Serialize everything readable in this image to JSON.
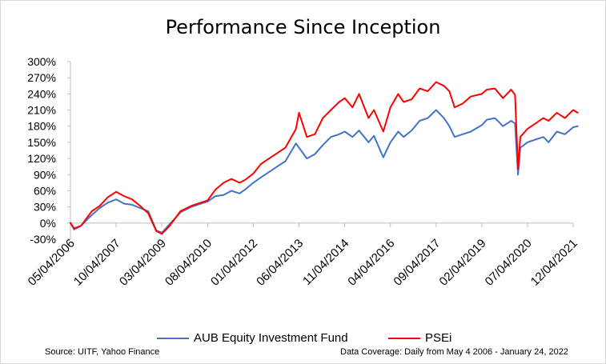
{
  "chart_data": {
    "type": "line",
    "title": "Performance Since Inception",
    "xlabel": "",
    "ylabel": "",
    "x_tick_labels": [
      "05/04/2006",
      "10/04/2007",
      "03/04/2009",
      "08/04/2010",
      "01/04/2012",
      "06/04/2013",
      "11/04/2014",
      "04/04/2016",
      "09/04/2017",
      "02/04/2019",
      "07/04/2020",
      "12/04/2021"
    ],
    "y_tick_labels": [
      "-30%",
      "0%",
      "30%",
      "60%",
      "90%",
      "120%",
      "150%",
      "180%",
      "210%",
      "240%",
      "270%",
      "300%"
    ],
    "ylim": [
      -30,
      300
    ],
    "y_unit": "%",
    "grid": false,
    "legend_position": "bottom",
    "x_dates": [
      "2006-05-04",
      "2006-06-15",
      "2006-09-01",
      "2007-01-01",
      "2007-04-01",
      "2007-07-01",
      "2007-10-04",
      "2008-01-01",
      "2008-04-01",
      "2008-07-01",
      "2008-10-01",
      "2009-01-01",
      "2009-03-04",
      "2009-06-01",
      "2009-10-01",
      "2010-02-01",
      "2010-05-01",
      "2010-08-04",
      "2010-11-01",
      "2011-02-01",
      "2011-05-01",
      "2011-08-01",
      "2011-10-01",
      "2012-01-04",
      "2012-04-01",
      "2012-07-01",
      "2012-10-01",
      "2013-01-01",
      "2013-05-01",
      "2013-06-04",
      "2013-09-01",
      "2013-12-01",
      "2014-03-01",
      "2014-06-01",
      "2014-09-01",
      "2014-11-04",
      "2015-02-01",
      "2015-04-15",
      "2015-08-01",
      "2015-10-01",
      "2016-01-15",
      "2016-04-04",
      "2016-07-01",
      "2016-09-01",
      "2016-12-01",
      "2017-03-01",
      "2017-06-01",
      "2017-09-04",
      "2017-12-01",
      "2018-02-01",
      "2018-04-01",
      "2018-07-01",
      "2018-10-01",
      "2019-02-04",
      "2019-04-01",
      "2019-07-01",
      "2019-10-01",
      "2020-01-01",
      "2020-02-15",
      "2020-03-19",
      "2020-04-15",
      "2020-07-04",
      "2020-10-01",
      "2021-01-01",
      "2021-03-01",
      "2021-06-01",
      "2021-09-01",
      "2021-12-04",
      "2022-01-24"
    ],
    "series": [
      {
        "name": "AUB Equity Investment Fund",
        "color": "#4472c4",
        "values": [
          0,
          -12,
          -5,
          15,
          28,
          38,
          44,
          36,
          34,
          28,
          22,
          -14,
          -18,
          -2,
          20,
          30,
          35,
          40,
          50,
          52,
          60,
          55,
          62,
          75,
          85,
          95,
          105,
          115,
          148,
          140,
          120,
          128,
          145,
          160,
          165,
          170,
          160,
          172,
          150,
          162,
          122,
          150,
          170,
          160,
          172,
          190,
          195,
          210,
          195,
          180,
          160,
          165,
          170,
          182,
          192,
          195,
          180,
          190,
          185,
          90,
          140,
          150,
          155,
          160,
          150,
          170,
          165,
          178,
          180
        ]
      },
      {
        "name": "PSEi",
        "color": "#ff0000",
        "values": [
          0,
          -10,
          -5,
          22,
          32,
          48,
          58,
          50,
          44,
          32,
          18,
          -15,
          -20,
          -5,
          22,
          32,
          37,
          42,
          62,
          75,
          82,
          75,
          80,
          92,
          110,
          120,
          130,
          140,
          175,
          205,
          160,
          165,
          195,
          210,
          225,
          232,
          215,
          240,
          195,
          210,
          170,
          215,
          240,
          225,
          230,
          250,
          245,
          262,
          255,
          245,
          215,
          222,
          235,
          240,
          248,
          250,
          232,
          248,
          238,
          100,
          160,
          175,
          185,
          195,
          190,
          205,
          195,
          210,
          205
        ]
      }
    ]
  },
  "legend": {
    "items": [
      {
        "label": "AUB Equity Investment Fund",
        "color": "#4472c4"
      },
      {
        "label": "PSEi",
        "color": "#ff0000"
      }
    ]
  },
  "footer": {
    "source": "Source: UITF, Yahoo Finance",
    "coverage": "Data Coverage: Daily from May 4 2006 - January 24, 2022"
  }
}
